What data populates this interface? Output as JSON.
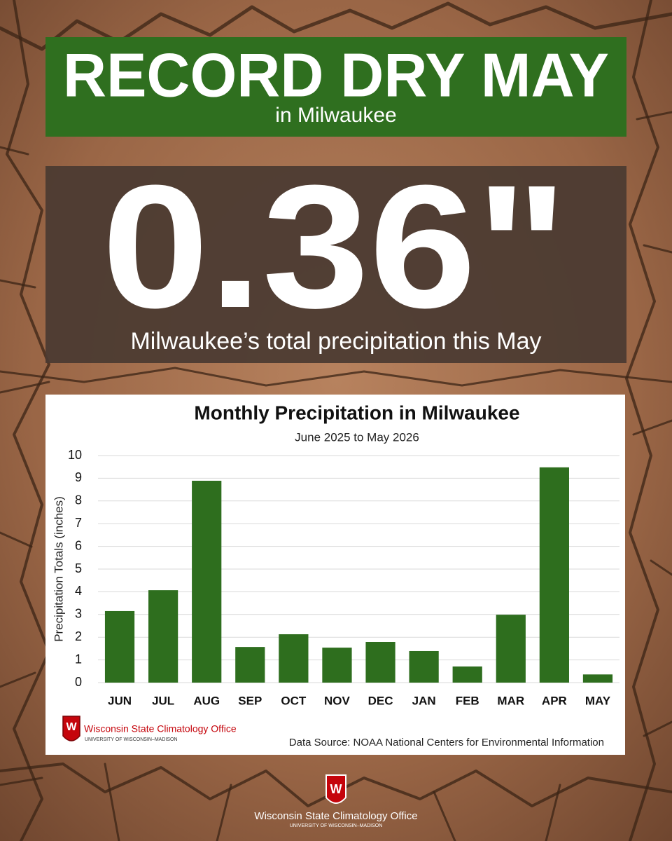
{
  "header": {
    "title": "RECORD DRY MAY",
    "subtitle": "in Milwaukee"
  },
  "highlight": {
    "value": "0.36\"",
    "caption": "Milwaukee’s total precipitation this May"
  },
  "chart_data": {
    "type": "bar",
    "title": "Monthly Precipitation in Milwaukee",
    "subtitle": "June 2025 to May 2026",
    "y_label": "Precipitation Totals (inches)",
    "categories": [
      "JUN",
      "JUL",
      "AUG",
      "SEP",
      "OCT",
      "NOV",
      "DEC",
      "JAN",
      "FEB",
      "MAR",
      "APR",
      "MAY"
    ],
    "values": [
      3.15,
      4.07,
      8.89,
      1.57,
      2.13,
      1.54,
      1.79,
      1.39,
      0.71,
      2.99,
      9.48,
      0.36
    ],
    "color": "#2e6e1e",
    "ylim": [
      0,
      10
    ],
    "yticks": [
      0,
      1,
      2,
      3,
      4,
      5,
      6,
      7,
      8,
      9,
      10
    ],
    "grid": true
  },
  "chart_footer": {
    "logo_name": "Wisconsin State Climatology Office",
    "logo_sub": "UNIVERSITY OF WISCONSIN–MADISON",
    "source": "Data Source: NOAA National Centers for Environmental Information"
  },
  "footer": {
    "logo_name": "Wisconsin State Climatology Office",
    "logo_sub": "UNIVERSITY OF WISCONSIN–MADISON"
  }
}
